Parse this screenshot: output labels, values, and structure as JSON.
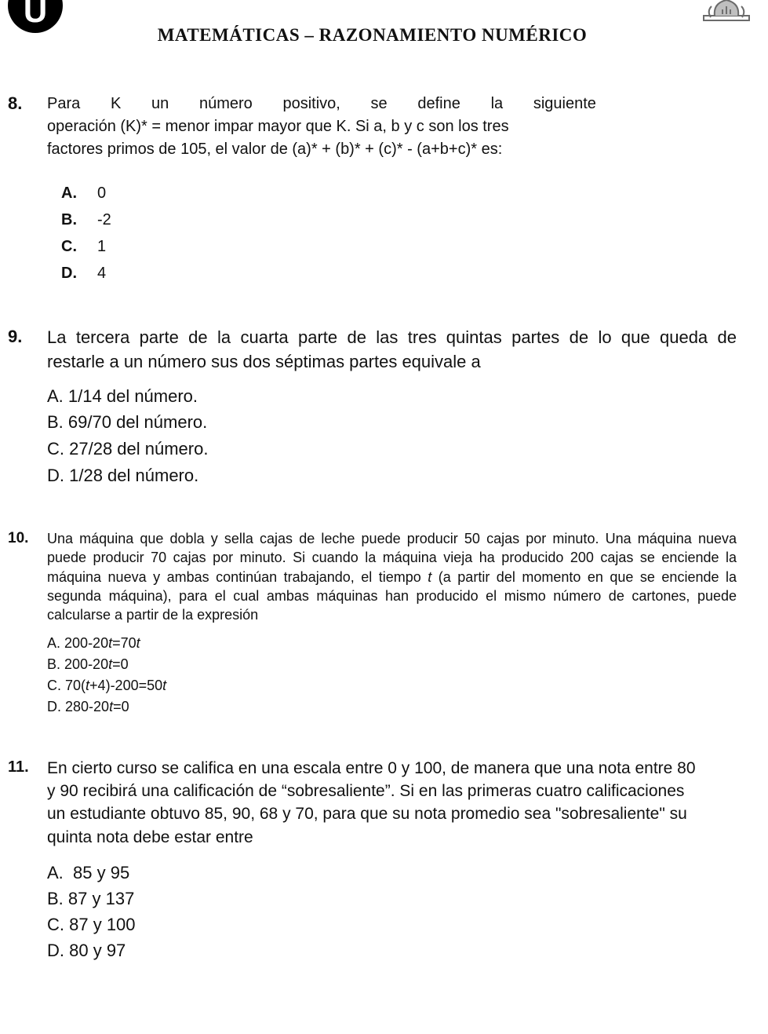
{
  "header": {
    "left_glyph": "U",
    "title": "MATEMÁTICAS – RAZONAMIENTO NUMÉRICO"
  },
  "q8": {
    "number": "8.",
    "stem_line1_words": [
      "Para",
      "K",
      "un",
      "número",
      "positivo,",
      "se",
      "define",
      "la",
      "siguiente"
    ],
    "stem_line2": "operación (K)* = menor impar mayor que K. Si a, b y c son los tres",
    "stem_line3": "factores primos de 105, el valor de (a)* + (b)* + (c)* - (a+b+c)* es:",
    "options": [
      {
        "letter": "A.",
        "text": "0"
      },
      {
        "letter": "B.",
        "text": "-2"
      },
      {
        "letter": "C.",
        "text": "1"
      },
      {
        "letter": "D.",
        "text": "4"
      }
    ]
  },
  "q9": {
    "number": "9.",
    "stem_line1": "La tercera parte de la cuarta parte de las tres quintas partes de lo que queda de",
    "stem_line2": "restarle a un número sus dos séptimas partes equivale a",
    "options": [
      {
        "letter": "A.",
        "text": "1/14 del número."
      },
      {
        "letter": "B.",
        "text": "69/70 del número."
      },
      {
        "letter": "C.",
        "text": "27/28 del número."
      },
      {
        "letter": "D.",
        "text": "1/28 del número."
      }
    ]
  },
  "q10": {
    "number": "10.",
    "stem_part1": "Una máquina que dobla y sella cajas de leche puede producir 50 cajas por minuto. Una máquina nueva puede producir 70 cajas por minuto. Si cuando la máquina vieja ha producido 200 cajas se enciende la máquina nueva y ambas continúan trabajando, el tiempo ",
    "stem_italic": "t",
    "stem_part2": " (a partir del momento en que se enciende la segunda máquina), para el cual ambas máquinas han producido el mismo número de cartones, puede calcularse a partir de la expresión",
    "options": [
      {
        "letter": "A.",
        "pre": "200-20",
        "it1": "t",
        "mid": "=70",
        "it2": "t",
        "post": ""
      },
      {
        "letter": "B.",
        "pre": "200-20",
        "it1": "t",
        "mid": "=0",
        "it2": "",
        "post": ""
      },
      {
        "letter": "C.",
        "pre": "70(",
        "it1": "t",
        "mid": "+4)-200=50",
        "it2": "t",
        "post": ""
      },
      {
        "letter": "D.",
        "pre": "280-20",
        "it1": "t",
        "mid": "=0",
        "it2": "",
        "post": ""
      }
    ]
  },
  "q11": {
    "number": "11.",
    "stem": "En cierto curso se califica en una escala entre 0 y 100, de manera que una nota entre 80 y 90 recibirá una calificación de “sobresaliente”. Si en las primeras cuatro calificaciones un estudiante obtuvo 85, 90, 68 y 70, para que su nota promedio sea \"sobresaliente\" su quinta nota debe estar entre",
    "options": [
      {
        "letter": "A.",
        "text": "85 y 95"
      },
      {
        "letter": "B.",
        "text": "87 y 137"
      },
      {
        "letter": "C.",
        "text": "87 y 100"
      },
      {
        "letter": "D.",
        "text": "80 y 97"
      }
    ]
  }
}
